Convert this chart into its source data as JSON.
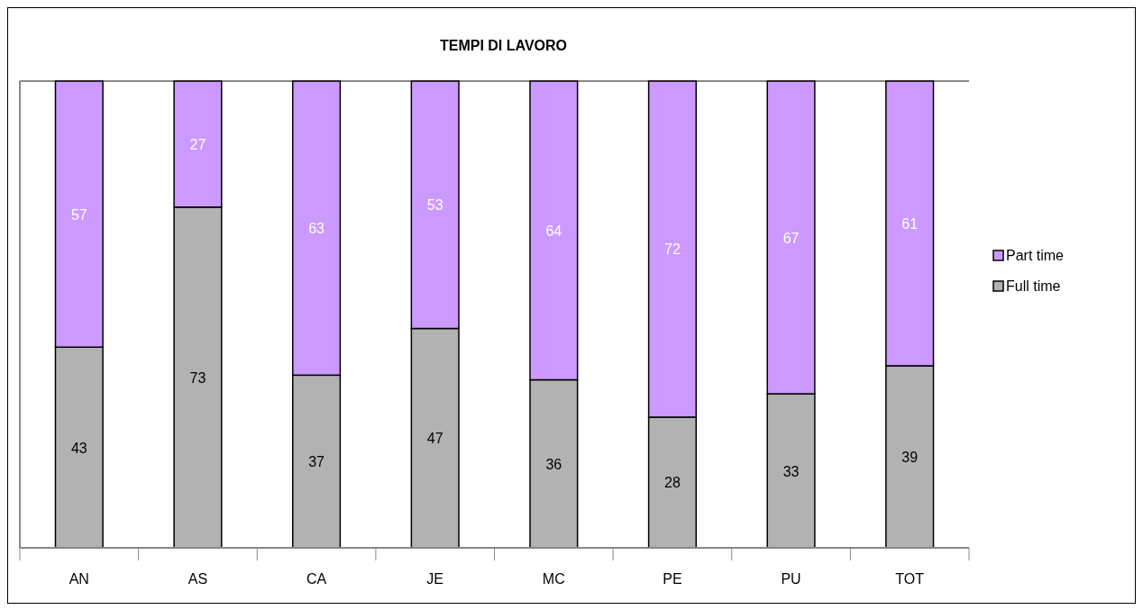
{
  "chart_data": {
    "type": "bar",
    "title": "TEMPI DI LAVORO",
    "stacked": true,
    "categories": [
      "AN",
      "AS",
      "CA",
      "JE",
      "MC",
      "PE",
      "PU",
      "TOT"
    ],
    "series": [
      {
        "name": "Full time",
        "color": "#b2b2b2",
        "values": [
          43,
          73,
          37,
          47,
          36,
          28,
          33,
          39
        ]
      },
      {
        "name": "Part time",
        "color": "#cc99ff",
        "values": [
          57,
          27,
          63,
          53,
          64,
          72,
          67,
          61
        ]
      }
    ],
    "ylim": [
      0,
      100
    ],
    "tick_labels": "x",
    "data_labels": true,
    "legend": "right"
  }
}
